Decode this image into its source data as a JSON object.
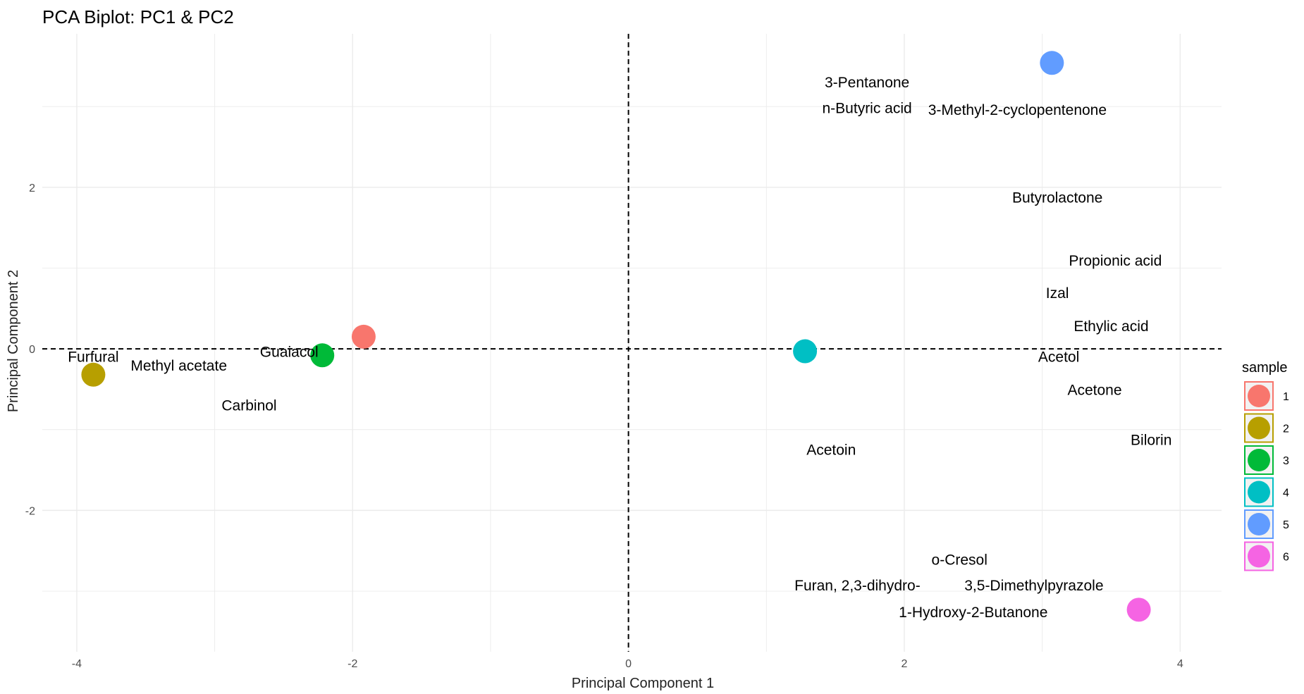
{
  "chart_data": {
    "type": "scatter",
    "title": "PCA Biplot: PC1 & PC2",
    "xlabel": "Principal Component 1",
    "ylabel": "Principal Component 2",
    "xlim": [
      -4.25,
      4.3
    ],
    "ylim": [
      -3.75,
      3.9
    ],
    "xticks": [
      -4,
      -2,
      0,
      2,
      4
    ],
    "yticks": [
      -2,
      0,
      2
    ],
    "grid": true,
    "reference_lines": {
      "x": 0,
      "y": 0,
      "style": "dashed"
    },
    "legend": {
      "title": "sample",
      "position": "right",
      "entries": [
        {
          "label": "1",
          "color": "#F8766D"
        },
        {
          "label": "2",
          "color": "#B79F00"
        },
        {
          "label": "3",
          "color": "#00BA38"
        },
        {
          "label": "4",
          "color": "#00BFC4"
        },
        {
          "label": "5",
          "color": "#619CFF"
        },
        {
          "label": "6",
          "color": "#F564E3"
        }
      ]
    },
    "points": [
      {
        "sample": "1",
        "x": -1.92,
        "y": 0.15,
        "color": "#F8766D"
      },
      {
        "sample": "2",
        "x": -3.88,
        "y": -0.32,
        "color": "#B79F00"
      },
      {
        "sample": "3",
        "x": -2.22,
        "y": -0.08,
        "color": "#00BA38"
      },
      {
        "sample": "4",
        "x": 1.28,
        "y": -0.03,
        "color": "#00BFC4"
      },
      {
        "sample": "5",
        "x": 3.07,
        "y": 3.54,
        "color": "#619CFF"
      },
      {
        "sample": "6",
        "x": 3.7,
        "y": -3.23,
        "color": "#F564E3"
      }
    ],
    "variable_labels": [
      {
        "text": "3-Pentanone",
        "x": 1.73,
        "y": 3.3
      },
      {
        "text": "n-Butyric acid",
        "x": 1.73,
        "y": 2.98
      },
      {
        "text": "3-Methyl-2-cyclopentenone",
        "x": 2.82,
        "y": 2.96
      },
      {
        "text": "Butyrolactone",
        "x": 3.11,
        "y": 1.87
      },
      {
        "text": "Propionic acid",
        "x": 3.53,
        "y": 1.09
      },
      {
        "text": "Izal",
        "x": 3.11,
        "y": 0.69
      },
      {
        "text": "Ethylic acid",
        "x": 3.5,
        "y": 0.28
      },
      {
        "text": "Acetol",
        "x": 3.12,
        "y": -0.1
      },
      {
        "text": "Acetone",
        "x": 3.38,
        "y": -0.51
      },
      {
        "text": "Bilorin",
        "x": 3.79,
        "y": -1.13
      },
      {
        "text": "Acetoin",
        "x": 1.47,
        "y": -1.25
      },
      {
        "text": "Furfural",
        "x": -3.88,
        "y": -0.1
      },
      {
        "text": "Methyl acetate",
        "x": -3.26,
        "y": -0.21
      },
      {
        "text": "Guaiacol",
        "x": -2.46,
        "y": -0.04
      },
      {
        "text": "Carbinol",
        "x": -2.75,
        "y": -0.7
      },
      {
        "text": "o-Cresol",
        "x": 2.4,
        "y": -2.61
      },
      {
        "text": "Furan, 2,3-dihydro-",
        "x": 1.66,
        "y": -2.93
      },
      {
        "text": "3,5-Dimethylpyrazole",
        "x": 2.94,
        "y": -2.93
      },
      {
        "text": "1-Hydroxy-2-Butanone",
        "x": 2.5,
        "y": -3.26
      }
    ]
  }
}
